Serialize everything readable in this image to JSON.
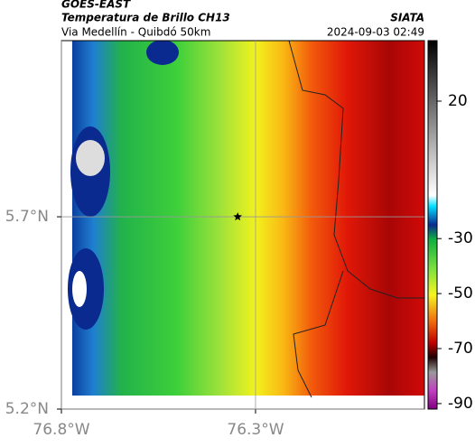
{
  "map": {
    "header": {
      "agency": "GOES-EAST",
      "title": "Temperatura de Brillo CH13",
      "subtitle": "Via Medellín - Quibdó 50km",
      "source": "SIATA",
      "timestamp": "2024-09-03 02:49"
    },
    "xlim": [
      -76.8,
      -75.865
    ],
    "ylim": [
      5.2,
      6.158
    ],
    "xticks": [
      {
        "value": -76.8,
        "label": "76.8°W"
      },
      {
        "value": -76.3,
        "label": "76.3°W"
      }
    ],
    "yticks": [
      {
        "value": 5.2,
        "label": "5.2°N"
      },
      {
        "value": 5.7,
        "label": "5.7°N"
      }
    ],
    "grid": true,
    "colorbar": {
      "lim": [
        -92,
        42
      ],
      "ticks": [
        20,
        -30,
        -50,
        -70,
        -90
      ]
    },
    "marker": {
      "lon": -76.346,
      "lat": 5.7
    }
  }
}
